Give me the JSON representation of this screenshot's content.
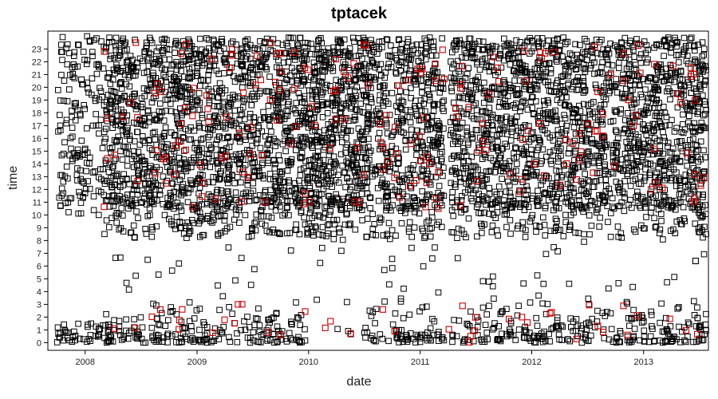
{
  "chart_data": {
    "type": "scatter",
    "title": "tptacek",
    "xlabel": "date",
    "ylabel": "time",
    "x_ticks": [
      "2008",
      "2009",
      "2010",
      "2011",
      "2012",
      "2013"
    ],
    "y_ticks": [
      "0",
      "1",
      "2",
      "3",
      "4",
      "5",
      "6",
      "7",
      "8",
      "9",
      "10",
      "11",
      "12",
      "13",
      "14",
      "15",
      "16",
      "17",
      "18",
      "19",
      "20",
      "21",
      "22",
      "23"
    ],
    "xlim": [
      "2007-09-01",
      "2013-08-01"
    ],
    "ylim": [
      -0.6,
      24.4
    ],
    "marker": "open-square",
    "grid": false,
    "series": [
      {
        "color": "#000000",
        "x_range": [
          "2007-10-01",
          "2013-07-25"
        ],
        "y_range": [
          0,
          23.9
        ],
        "note_gap_hours": [
          5,
          9
        ]
      },
      {
        "color": "#cc0000",
        "x_range": [
          "2008-03-01",
          "2013-07-25"
        ],
        "y_range": [
          0,
          23.9
        ]
      }
    ],
    "sample_points": [
      {
        "x": "2007-12-20",
        "y": 20.6,
        "series": 0
      },
      {
        "x": "2008-02-15",
        "y": 1.1,
        "series": 0
      },
      {
        "x": "2008-06-15",
        "y": 23.5,
        "series": 1
      },
      {
        "x": "2009-05-15",
        "y": 3.0,
        "series": 1
      },
      {
        "x": "2009-10-01",
        "y": 0.6,
        "series": 1
      },
      {
        "x": "2010-09-01",
        "y": 2.6,
        "series": 1
      },
      {
        "x": "2011-02-01",
        "y": 14.0,
        "series": 1
      },
      {
        "x": "2012-09-15",
        "y": 21.0,
        "series": 1
      },
      {
        "x": "2013-06-20",
        "y": 6.4,
        "series": 0
      }
    ]
  }
}
